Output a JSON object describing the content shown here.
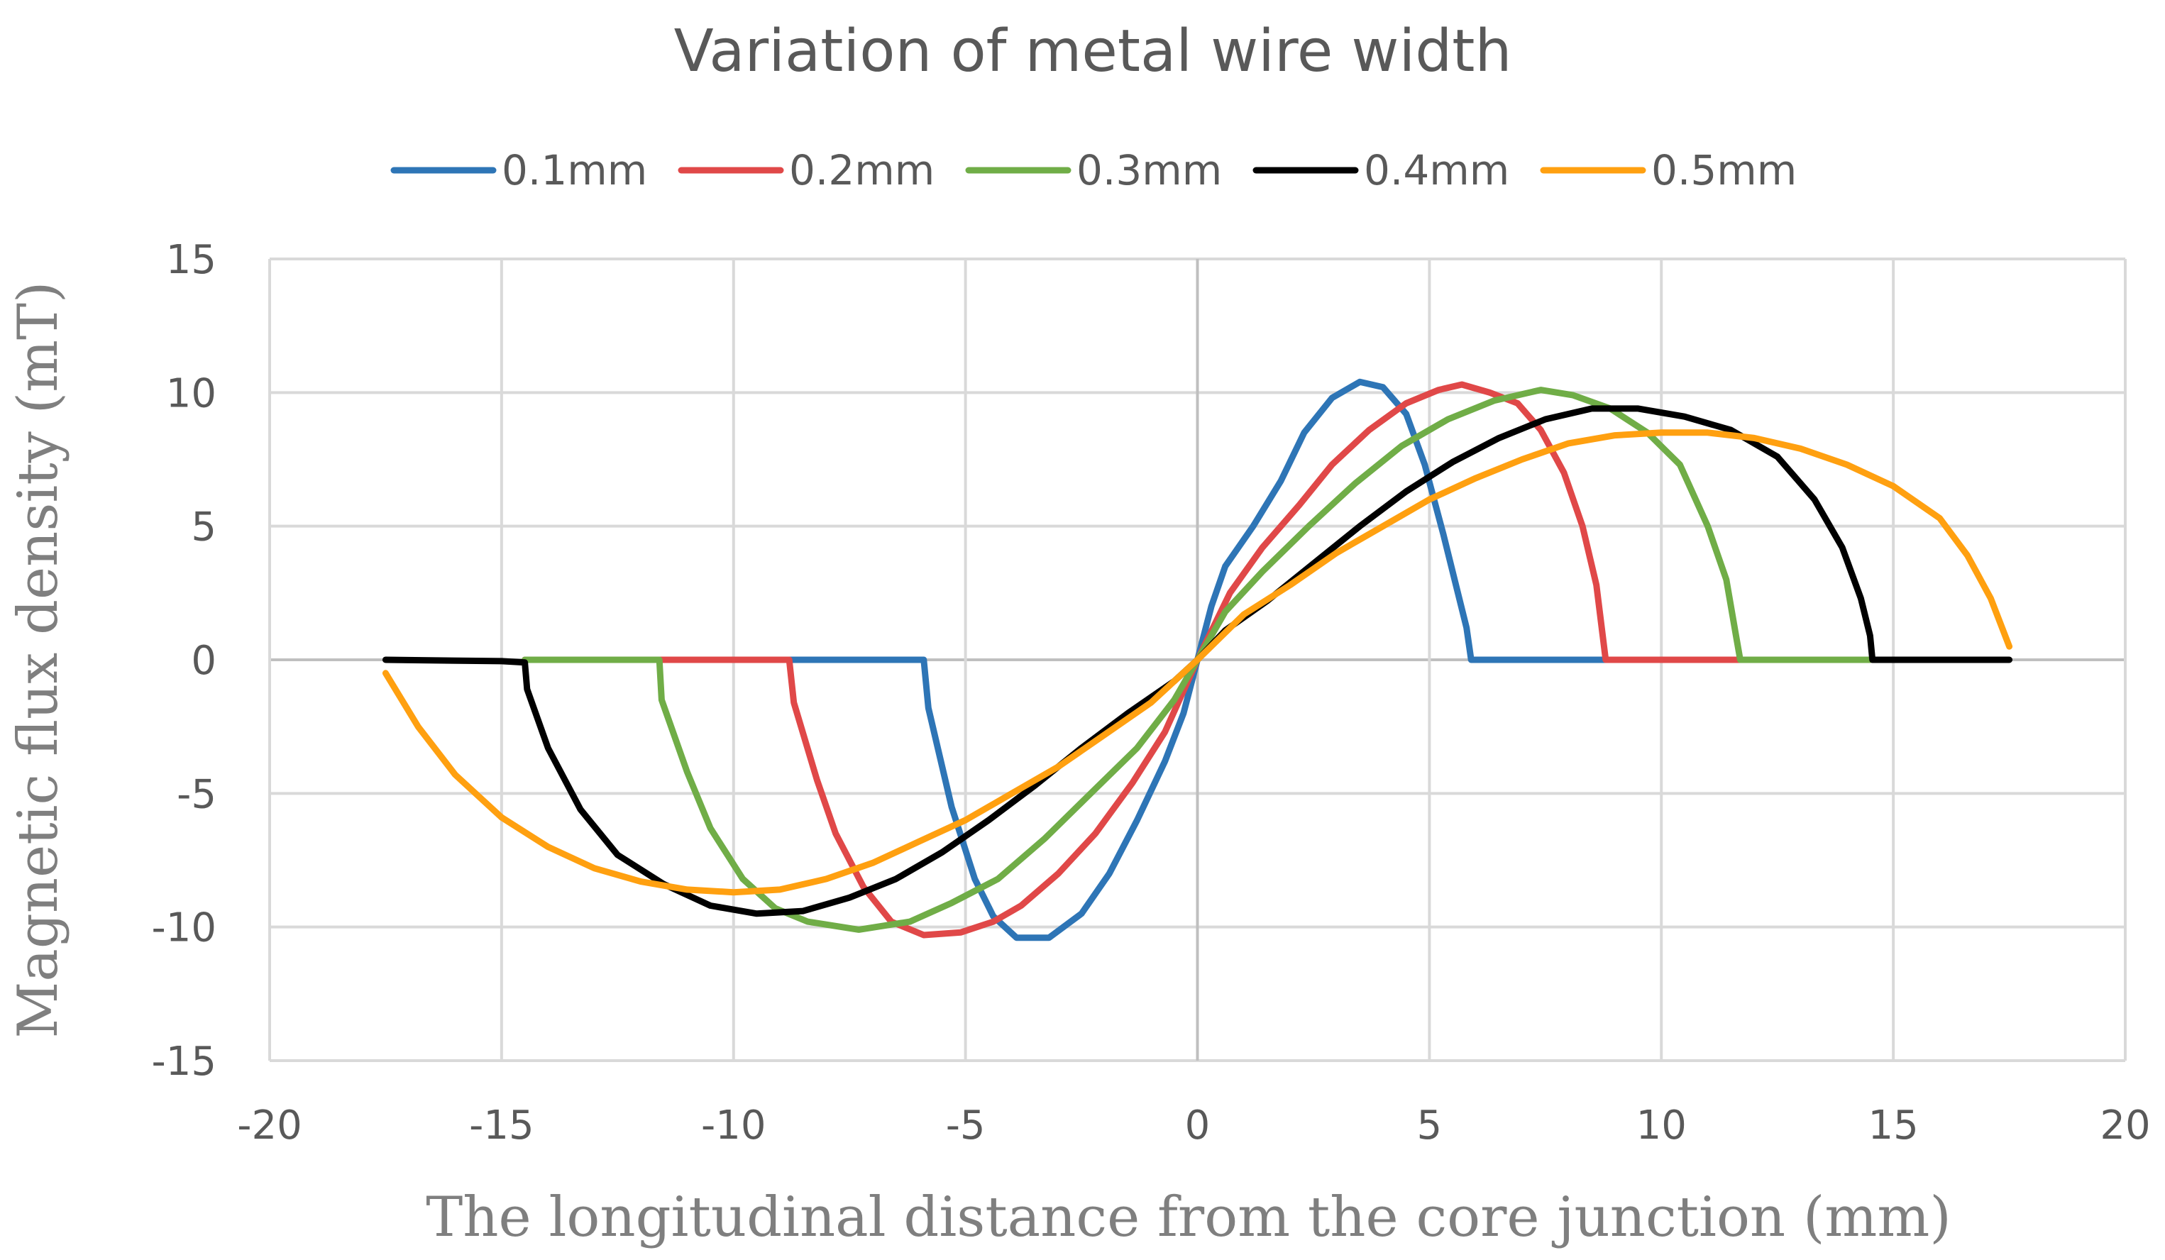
{
  "chart_data": {
    "type": "line",
    "title": "Variation of metal wire width",
    "xlabel": "The longitudinal distance from the core junction (mm)",
    "ylabel": "Magnetic flux density (mT)",
    "xlim": [
      -20,
      20
    ],
    "ylim": [
      -15,
      15
    ],
    "xticks": [
      -20,
      -15,
      -10,
      -5,
      0,
      5,
      10,
      15,
      20
    ],
    "yticks": [
      -15,
      -10,
      -5,
      0,
      5,
      10,
      15
    ],
    "grid": true,
    "legend_position": "top",
    "series": [
      {
        "name": "0.1mm",
        "color": "#2e75b6",
        "points": [
          [
            -11.6,
            0
          ],
          [
            -5.9,
            0
          ],
          [
            -5.8,
            -1.8
          ],
          [
            -5.3,
            -5.5
          ],
          [
            -4.8,
            -8.2
          ],
          [
            -4.4,
            -9.6
          ],
          [
            -3.9,
            -10.4
          ],
          [
            -3.2,
            -10.4
          ],
          [
            -2.5,
            -9.5
          ],
          [
            -1.9,
            -8
          ],
          [
            -1.3,
            -6
          ],
          [
            -0.7,
            -3.8
          ],
          [
            -0.3,
            -2
          ],
          [
            0,
            0
          ],
          [
            0.3,
            2
          ],
          [
            0.6,
            3.5
          ],
          [
            1.2,
            5
          ],
          [
            1.8,
            6.7
          ],
          [
            2.3,
            8.5
          ],
          [
            2.9,
            9.8
          ],
          [
            3.5,
            10.4
          ],
          [
            4.0,
            10.2
          ],
          [
            4.5,
            9.2
          ],
          [
            4.9,
            7.3
          ],
          [
            5.3,
            4.7
          ],
          [
            5.6,
            2.6
          ],
          [
            5.8,
            1.2
          ],
          [
            5.9,
            0
          ],
          [
            8.0,
            0
          ],
          [
            11.6,
            0
          ]
        ]
      },
      {
        "name": "0.2mm",
        "color": "#e04848",
        "points": [
          [
            -14.5,
            0
          ],
          [
            -8.8,
            0
          ],
          [
            -8.7,
            -1.6
          ],
          [
            -8.2,
            -4.5
          ],
          [
            -7.8,
            -6.5
          ],
          [
            -7.2,
            -8.5
          ],
          [
            -6.6,
            -9.8
          ],
          [
            -5.9,
            -10.3
          ],
          [
            -5.1,
            -10.2
          ],
          [
            -4.4,
            -9.8
          ],
          [
            -3.8,
            -9.2
          ],
          [
            -3.0,
            -8
          ],
          [
            -2.2,
            -6.5
          ],
          [
            -1.4,
            -4.6
          ],
          [
            -0.7,
            -2.7
          ],
          [
            0,
            0
          ],
          [
            0.7,
            2.5
          ],
          [
            1.4,
            4.2
          ],
          [
            2.2,
            5.8
          ],
          [
            2.9,
            7.3
          ],
          [
            3.7,
            8.6
          ],
          [
            4.5,
            9.6
          ],
          [
            5.2,
            10.1
          ],
          [
            5.7,
            10.3
          ],
          [
            6.3,
            10
          ],
          [
            6.9,
            9.6
          ],
          [
            7.4,
            8.6
          ],
          [
            7.9,
            7
          ],
          [
            8.3,
            5
          ],
          [
            8.6,
            2.8
          ],
          [
            8.8,
            0
          ],
          [
            11.6,
            0
          ],
          [
            14.5,
            0
          ]
        ]
      },
      {
        "name": "0.3mm",
        "color": "#70ad47",
        "points": [
          [
            -14.5,
            0
          ],
          [
            -11.6,
            0
          ],
          [
            -11.55,
            -1.5
          ],
          [
            -11.0,
            -4.2
          ],
          [
            -10.5,
            -6.3
          ],
          [
            -9.8,
            -8.2
          ],
          [
            -9.1,
            -9.3
          ],
          [
            -8.4,
            -9.8
          ],
          [
            -7.3,
            -10.1
          ],
          [
            -6.2,
            -9.8
          ],
          [
            -5.3,
            -9.1
          ],
          [
            -4.3,
            -8.2
          ],
          [
            -3.3,
            -6.7
          ],
          [
            -2.3,
            -5
          ],
          [
            -1.3,
            -3.3
          ],
          [
            -0.5,
            -1.5
          ],
          [
            0,
            0
          ],
          [
            0.6,
            1.8
          ],
          [
            1.4,
            3.3
          ],
          [
            2.4,
            5
          ],
          [
            3.4,
            6.6
          ],
          [
            4.4,
            8
          ],
          [
            5.4,
            9
          ],
          [
            6.4,
            9.7
          ],
          [
            7.4,
            10.1
          ],
          [
            8.1,
            9.9
          ],
          [
            8.9,
            9.4
          ],
          [
            9.7,
            8.5
          ],
          [
            10.4,
            7.3
          ],
          [
            11.0,
            5
          ],
          [
            11.4,
            3
          ],
          [
            11.6,
            1
          ],
          [
            11.7,
            0
          ],
          [
            13.0,
            0
          ],
          [
            14.5,
            0
          ]
        ]
      },
      {
        "name": "0.4mm",
        "color": "#000000",
        "points": [
          [
            -17.5,
            0
          ],
          [
            -15,
            -0.05
          ],
          [
            -14.5,
            -0.1
          ],
          [
            -14.45,
            -1.1
          ],
          [
            -14.0,
            -3.3
          ],
          [
            -13.3,
            -5.6
          ],
          [
            -12.5,
            -7.3
          ],
          [
            -11.5,
            -8.4
          ],
          [
            -10.5,
            -9.2
          ],
          [
            -9.5,
            -9.5
          ],
          [
            -8.5,
            -9.4
          ],
          [
            -7.5,
            -8.9
          ],
          [
            -6.5,
            -8.2
          ],
          [
            -5.5,
            -7.2
          ],
          [
            -4.5,
            -6
          ],
          [
            -3.5,
            -4.7
          ],
          [
            -2.5,
            -3.3
          ],
          [
            -1.5,
            -2
          ],
          [
            -0.5,
            -0.8
          ],
          [
            0,
            0
          ],
          [
            0.6,
            1.1
          ],
          [
            1.5,
            2.2
          ],
          [
            2.5,
            3.6
          ],
          [
            3.5,
            5
          ],
          [
            4.5,
            6.3
          ],
          [
            5.5,
            7.4
          ],
          [
            6.5,
            8.3
          ],
          [
            7.5,
            9
          ],
          [
            8.5,
            9.4
          ],
          [
            9.5,
            9.4
          ],
          [
            10.5,
            9.1
          ],
          [
            11.5,
            8.6
          ],
          [
            12.5,
            7.6
          ],
          [
            13.3,
            6
          ],
          [
            13.9,
            4.2
          ],
          [
            14.3,
            2.3
          ],
          [
            14.5,
            0.9
          ],
          [
            14.55,
            0
          ],
          [
            16,
            0
          ],
          [
            17.5,
            0
          ]
        ]
      },
      {
        "name": "0.5mm",
        "color": "#ffa010",
        "points": [
          [
            -17.5,
            -0.5
          ],
          [
            -16.8,
            -2.5
          ],
          [
            -16.0,
            -4.3
          ],
          [
            -15.0,
            -5.9
          ],
          [
            -14.0,
            -7
          ],
          [
            -13.0,
            -7.8
          ],
          [
            -12.0,
            -8.3
          ],
          [
            -11.0,
            -8.6
          ],
          [
            -10.0,
            -8.7
          ],
          [
            -9.0,
            -8.6
          ],
          [
            -8.0,
            -8.2
          ],
          [
            -7.0,
            -7.6
          ],
          [
            -6.0,
            -6.8
          ],
          [
            -5.0,
            -6
          ],
          [
            -4.0,
            -5
          ],
          [
            -3.0,
            -4
          ],
          [
            -2.0,
            -2.8
          ],
          [
            -1.0,
            -1.6
          ],
          [
            0,
            0
          ],
          [
            1.0,
            1.7
          ],
          [
            2.0,
            2.8
          ],
          [
            3.0,
            4
          ],
          [
            4.0,
            5
          ],
          [
            5.0,
            6
          ],
          [
            6.0,
            6.8
          ],
          [
            7.0,
            7.5
          ],
          [
            8.0,
            8.1
          ],
          [
            9.0,
            8.4
          ],
          [
            10.0,
            8.5
          ],
          [
            11.0,
            8.5
          ],
          [
            12.0,
            8.3
          ],
          [
            13.0,
            7.9
          ],
          [
            14.0,
            7.3
          ],
          [
            15.0,
            6.5
          ],
          [
            16.0,
            5.3
          ],
          [
            16.6,
            3.9
          ],
          [
            17.1,
            2.3
          ],
          [
            17.5,
            0.5
          ]
        ]
      }
    ]
  }
}
